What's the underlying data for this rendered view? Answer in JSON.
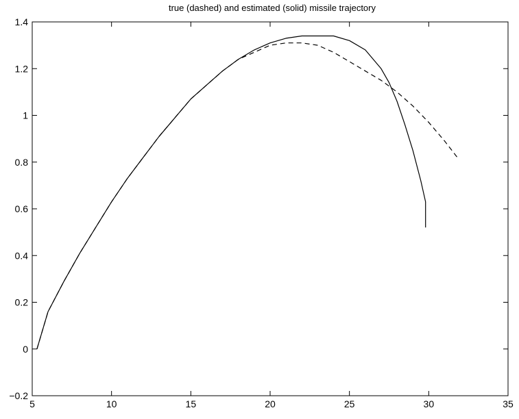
{
  "chart_data": {
    "type": "line",
    "title": "true (dashed) and estimated (solid) missile trajectory",
    "xlabel": "",
    "ylabel": "",
    "xlim": [
      5,
      35
    ],
    "ylim": [
      -0.2,
      1.4
    ],
    "xticks": [
      5,
      10,
      15,
      20,
      25,
      30,
      35
    ],
    "yticks": [
      -0.2,
      0,
      0.2,
      0.4,
      0.6,
      0.8,
      1,
      1.2,
      1.4
    ],
    "xtick_labels": [
      "5",
      "10",
      "15",
      "20",
      "25",
      "30",
      "35"
    ],
    "ytick_labels": [
      "−0.2",
      "0",
      "0.2",
      "0.4",
      "0.6",
      "0.8",
      "1",
      "1.2",
      "1.4"
    ],
    "grid": false,
    "series": [
      {
        "style": "dashed",
        "color": "#000000",
        "x": [
          5.3,
          6,
          7,
          8,
          9,
          10,
          11,
          12,
          13,
          14,
          15,
          16,
          17,
          18,
          19,
          20,
          21,
          22,
          23,
          24,
          25,
          26,
          27,
          28,
          29,
          30,
          31,
          31.8
        ],
        "y": [
          0,
          0.16,
          0.29,
          0.41,
          0.52,
          0.63,
          0.73,
          0.82,
          0.91,
          0.99,
          1.07,
          1.13,
          1.19,
          1.24,
          1.27,
          1.3,
          1.31,
          1.31,
          1.3,
          1.27,
          1.23,
          1.19,
          1.15,
          1.1,
          1.04,
          0.97,
          0.89,
          0.82
        ]
      },
      {
        "style": "solid",
        "color": "#000000",
        "x": [
          5.3,
          6,
          7,
          8,
          9,
          10,
          11,
          12,
          13,
          14,
          15,
          16,
          17,
          18,
          19,
          20,
          21,
          22,
          23,
          24,
          25,
          26,
          27,
          27.5,
          28,
          28.5,
          29,
          29.5,
          29.8,
          29.8
        ],
        "y": [
          0,
          0.16,
          0.29,
          0.41,
          0.52,
          0.63,
          0.73,
          0.82,
          0.91,
          0.99,
          1.07,
          1.13,
          1.19,
          1.24,
          1.28,
          1.31,
          1.33,
          1.34,
          1.34,
          1.34,
          1.32,
          1.28,
          1.2,
          1.14,
          1.06,
          0.96,
          0.85,
          0.72,
          0.63,
          0.52
        ]
      }
    ]
  }
}
